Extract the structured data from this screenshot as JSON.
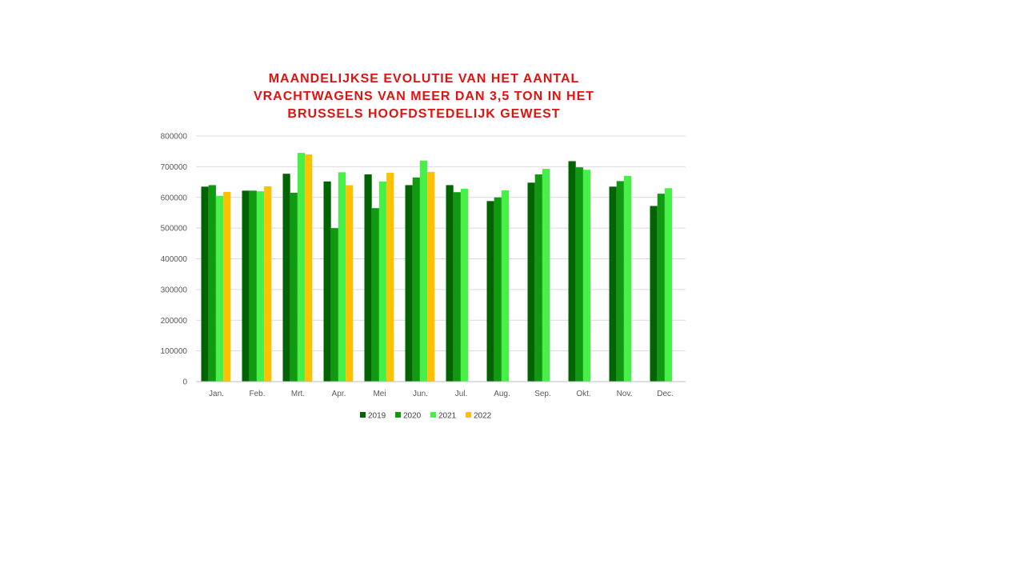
{
  "chart_data": {
    "type": "bar",
    "title_lines": [
      "MAANDELIJKSE EVOLUTIE VAN HET AANTAL",
      "VRACHTWAGENS VAN MEER DAN 3,5 TON IN HET",
      "BRUSSELS HOOFDSTEDELIJK GEWEST"
    ],
    "categories": [
      "Jan.",
      "Feb.",
      "Mrt.",
      "Apr.",
      "Mei",
      "Jun.",
      "Jul.",
      "Aug.",
      "Sep.",
      "Okt.",
      "Nov.",
      "Dec."
    ],
    "yticks": [
      "0",
      "100000",
      "200000",
      "300000",
      "400000",
      "500000",
      "600000",
      "700000",
      "800000"
    ],
    "ylim": [
      0,
      800000
    ],
    "grid": true,
    "legend_position": "bottom",
    "series": [
      {
        "name": "2019",
        "color": "#006400",
        "values": [
          635000,
          622000,
          677000,
          652000,
          675000,
          640000,
          640000,
          588000,
          648000,
          718000,
          635000,
          572000
        ]
      },
      {
        "name": "2020",
        "color": "#0f9a0f",
        "values": [
          640000,
          622000,
          615000,
          500000,
          565000,
          665000,
          617000,
          600000,
          675000,
          698000,
          653000,
          612000
        ]
      },
      {
        "name": "2021",
        "color": "#47f047",
        "values": [
          605000,
          620000,
          745000,
          682000,
          652000,
          720000,
          628000,
          623000,
          693000,
          690000,
          670000,
          630000
        ]
      },
      {
        "name": "2022",
        "color": "#ffc000",
        "values": [
          618000,
          636000,
          740000,
          640000,
          680000,
          683000,
          null,
          null,
          null,
          null,
          null,
          null
        ]
      }
    ]
  }
}
